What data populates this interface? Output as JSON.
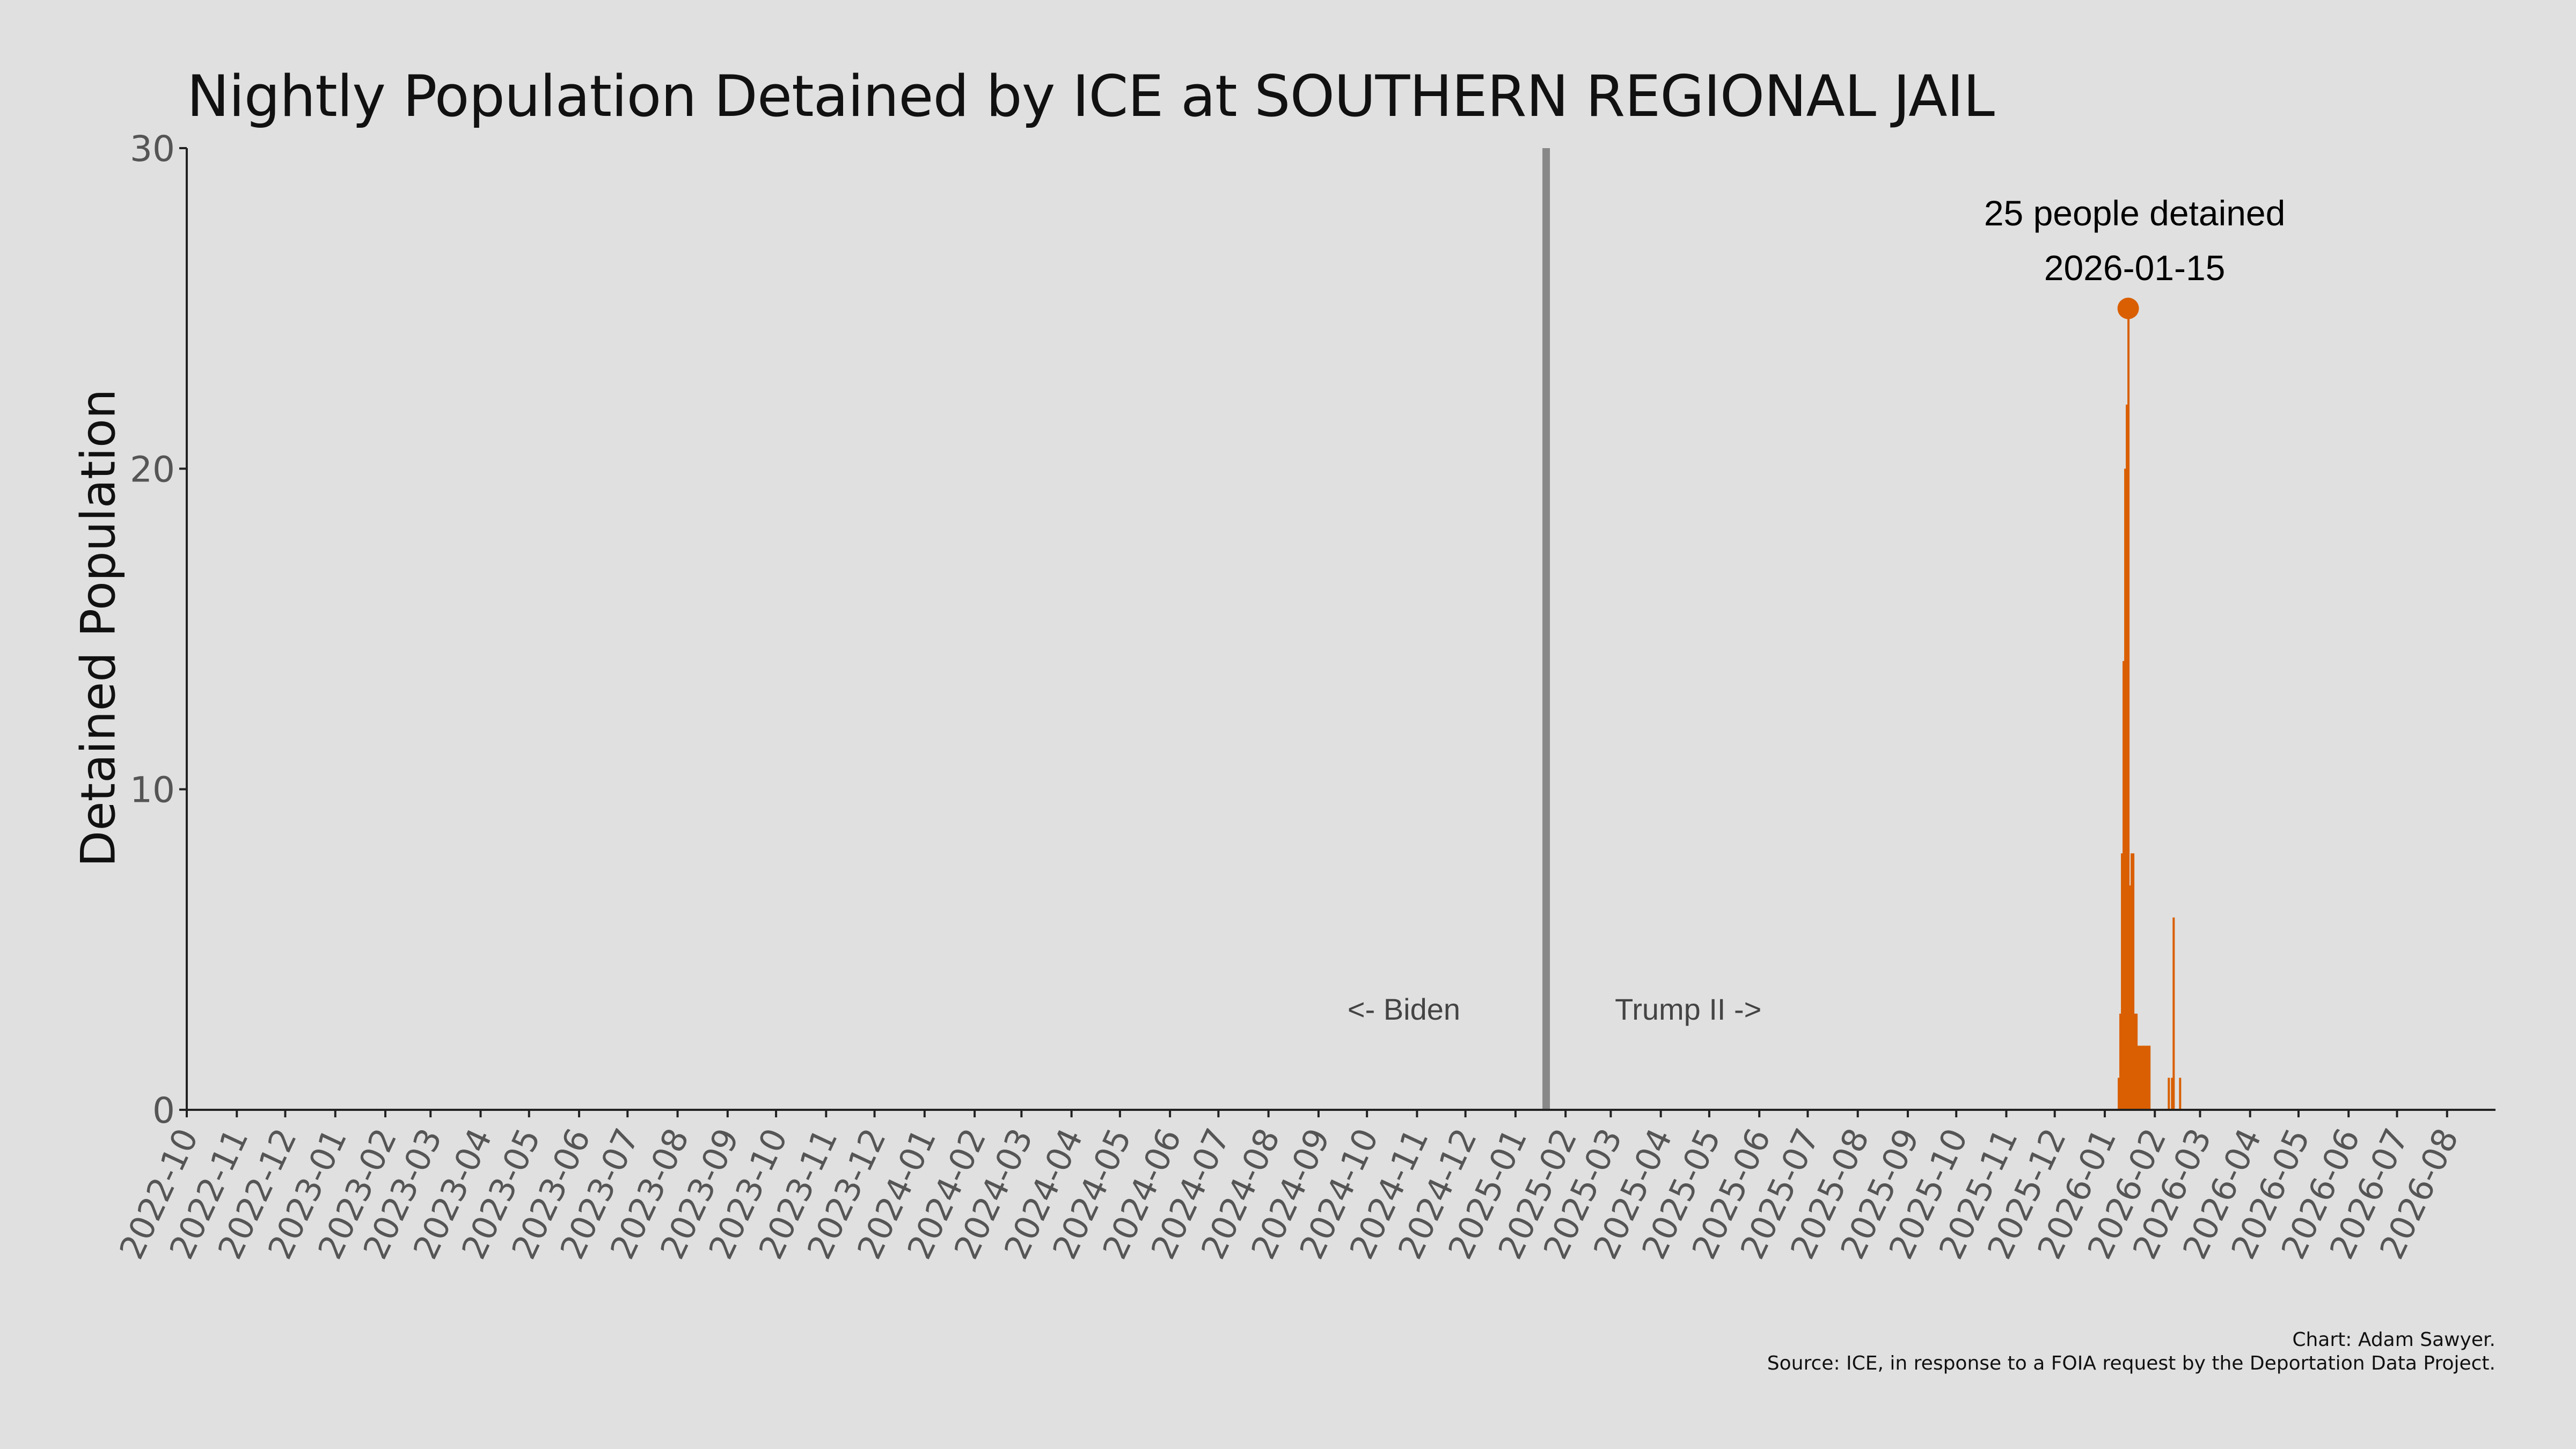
{
  "chart_data": {
    "type": "bar",
    "title": "Nightly Population Detained by ICE at SOUTHERN REGIONAL JAIL",
    "ylabel": "Detained Population",
    "xlabel": "",
    "ylim": [
      0,
      30
    ],
    "yticks": [
      0,
      10,
      20,
      30
    ],
    "xlim": [
      "2022-10-01",
      "2026-08-31"
    ],
    "xticks": [
      "2022-10",
      "2022-11",
      "2022-12",
      "2023-01",
      "2023-02",
      "2023-03",
      "2023-04",
      "2023-05",
      "2023-06",
      "2023-07",
      "2023-08",
      "2023-09",
      "2023-10",
      "2023-11",
      "2023-12",
      "2024-01",
      "2024-02",
      "2024-03",
      "2024-04",
      "2024-05",
      "2024-06",
      "2024-07",
      "2024-08",
      "2024-09",
      "2024-10",
      "2024-11",
      "2024-12",
      "2025-01",
      "2025-02",
      "2025-03",
      "2025-04",
      "2025-05",
      "2025-06",
      "2025-07",
      "2025-08",
      "2025-09",
      "2025-10",
      "2025-11",
      "2025-12",
      "2026-01",
      "2026-02",
      "2026-03",
      "2026-04",
      "2026-05",
      "2026-06",
      "2026-07",
      "2026-08"
    ],
    "grid": false,
    "colors": {
      "bars": "#d95f02",
      "divider": "#888888",
      "background": "#e0e0e0",
      "axis": "#222222",
      "tick_label": "#555555"
    },
    "divider": {
      "date": "2025-01-20",
      "left_label": "<- Biden",
      "right_label": "Trump II ->"
    },
    "annotation": {
      "date": "2026-01-15",
      "value": 25,
      "line1": "25 people detained",
      "line2": "2026-01-15"
    },
    "dates": [
      "2026-01-09",
      "2026-01-10",
      "2026-01-11",
      "2026-01-12",
      "2026-01-13",
      "2026-01-14",
      "2026-01-15",
      "2026-01-16",
      "2026-01-17",
      "2026-01-18",
      "2026-01-19",
      "2026-01-20",
      "2026-01-21",
      "2026-01-22",
      "2026-01-23",
      "2026-01-24",
      "2026-01-25",
      "2026-01-26",
      "2026-01-27",
      "2026-01-28",
      "2026-02-09",
      "2026-02-11",
      "2026-02-12",
      "2026-02-16"
    ],
    "values": [
      1,
      3,
      8,
      14,
      20,
      22,
      25,
      7,
      8,
      8,
      3,
      3,
      2,
      2,
      2,
      2,
      2,
      2,
      2,
      2,
      1,
      1,
      6,
      1
    ]
  },
  "credits": {
    "line1": "Chart: Adam Sawyer.",
    "line2": "Source: ICE, in response to a FOIA request by the Deportation Data Project."
  }
}
